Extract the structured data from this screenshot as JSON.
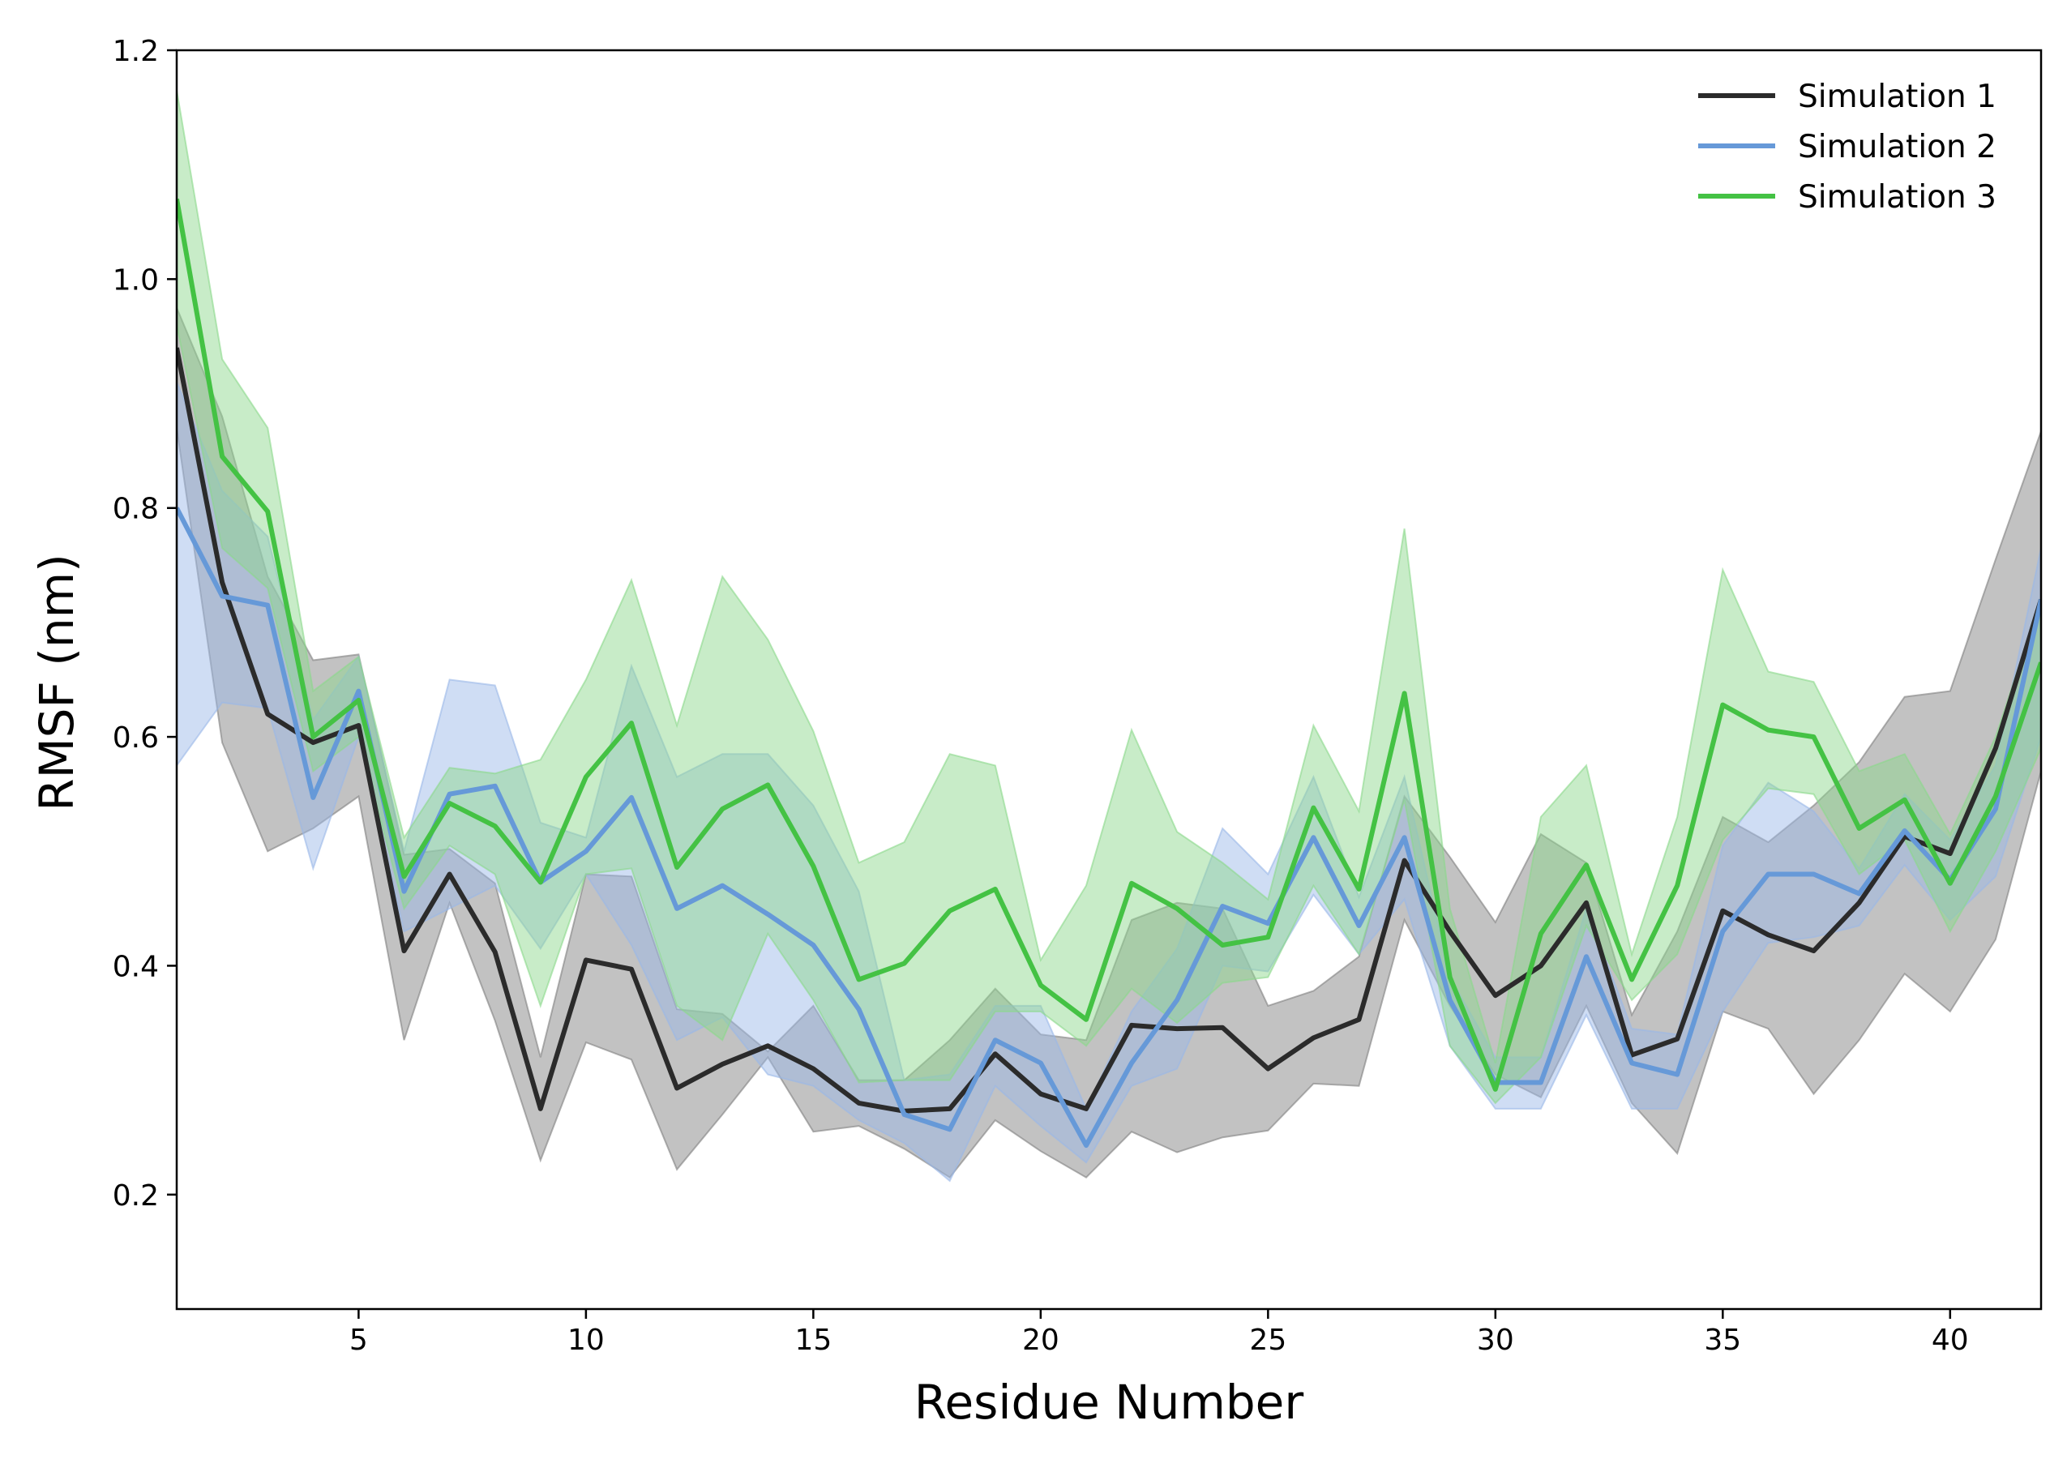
{
  "chart_data": {
    "type": "line",
    "title": "",
    "xlabel": "Residue Number",
    "ylabel": "RMSF (nm)",
    "xlim": [
      1,
      42
    ],
    "ylim": [
      0.1,
      1.2
    ],
    "xticks": [
      5,
      10,
      15,
      20,
      25,
      30,
      35,
      40
    ],
    "yticks": [
      0.2,
      0.4,
      0.6,
      0.8,
      1.0,
      1.2
    ],
    "ytick_labels": [
      "0.2",
      "0.4",
      "0.6",
      "0.8",
      "1.0",
      "1.2"
    ],
    "grid": false,
    "legend_position": "top-right",
    "x": [
      1,
      2,
      3,
      4,
      5,
      6,
      7,
      8,
      9,
      10,
      11,
      12,
      13,
      14,
      15,
      16,
      17,
      18,
      19,
      20,
      21,
      22,
      23,
      24,
      25,
      26,
      27,
      28,
      29,
      30,
      31,
      32,
      33,
      34,
      35,
      36,
      37,
      38,
      39,
      40,
      41,
      42
    ],
    "series": [
      {
        "name": "Simulation 1",
        "color": "#2b2b2b",
        "band_color": "#7f7f7f",
        "values": [
          0.94,
          0.735,
          0.62,
          0.595,
          0.61,
          0.413,
          0.48,
          0.412,
          0.275,
          0.405,
          0.397,
          0.293,
          0.314,
          0.33,
          0.31,
          0.28,
          0.273,
          0.275,
          0.323,
          0.288,
          0.275,
          0.348,
          0.345,
          0.346,
          0.31,
          0.337,
          0.353,
          0.492,
          0.43,
          0.374,
          0.4,
          0.455,
          0.322,
          0.336,
          0.448,
          0.427,
          0.413,
          0.455,
          0.513,
          0.498,
          0.59,
          0.72
        ],
        "lower": [
          0.87,
          0.595,
          0.5,
          0.52,
          0.548,
          0.335,
          0.455,
          0.352,
          0.23,
          0.333,
          0.318,
          0.222,
          0.27,
          0.32,
          0.255,
          0.26,
          0.24,
          0.215,
          0.265,
          0.238,
          0.215,
          0.255,
          0.237,
          0.25,
          0.256,
          0.297,
          0.295,
          0.44,
          0.365,
          0.305,
          0.285,
          0.365,
          0.28,
          0.236,
          0.36,
          0.345,
          0.288,
          0.335,
          0.393,
          0.36,
          0.423,
          0.57
        ],
        "upper": [
          0.975,
          0.88,
          0.74,
          0.667,
          0.672,
          0.497,
          0.502,
          0.472,
          0.32,
          0.48,
          0.478,
          0.362,
          0.358,
          0.325,
          0.365,
          0.3,
          0.3,
          0.335,
          0.38,
          0.34,
          0.335,
          0.44,
          0.455,
          0.45,
          0.365,
          0.378,
          0.408,
          0.548,
          0.495,
          0.438,
          0.515,
          0.49,
          0.357,
          0.43,
          0.53,
          0.508,
          0.54,
          0.578,
          0.635,
          0.64,
          0.755,
          0.867
        ]
      },
      {
        "name": "Simulation 2",
        "color": "#6699d8",
        "band_color": "#9ab8e8",
        "values": [
          0.8,
          0.723,
          0.715,
          0.547,
          0.64,
          0.465,
          0.55,
          0.557,
          0.473,
          0.5,
          0.547,
          0.45,
          0.47,
          0.445,
          0.418,
          0.362,
          0.27,
          0.257,
          0.335,
          0.315,
          0.243,
          0.315,
          0.37,
          0.452,
          0.437,
          0.512,
          0.435,
          0.512,
          0.37,
          0.298,
          0.298,
          0.408,
          0.315,
          0.305,
          0.43,
          0.48,
          0.48,
          0.463,
          0.518,
          0.475,
          0.537,
          0.72
        ],
        "lower": [
          0.575,
          0.63,
          0.625,
          0.485,
          0.6,
          0.43,
          0.45,
          0.47,
          0.415,
          0.48,
          0.418,
          0.335,
          0.355,
          0.305,
          0.295,
          0.265,
          0.245,
          0.212,
          0.295,
          0.26,
          0.228,
          0.295,
          0.31,
          0.4,
          0.395,
          0.462,
          0.41,
          0.458,
          0.33,
          0.275,
          0.275,
          0.357,
          0.275,
          0.275,
          0.36,
          0.42,
          0.425,
          0.435,
          0.488,
          0.44,
          0.478,
          0.6
        ],
        "upper": [
          0.91,
          0.815,
          0.775,
          0.615,
          0.67,
          0.5,
          0.65,
          0.645,
          0.525,
          0.512,
          0.662,
          0.565,
          0.585,
          0.585,
          0.54,
          0.465,
          0.3,
          0.305,
          0.365,
          0.365,
          0.275,
          0.36,
          0.415,
          0.52,
          0.48,
          0.565,
          0.46,
          0.565,
          0.39,
          0.32,
          0.32,
          0.45,
          0.345,
          0.34,
          0.505,
          0.56,
          0.535,
          0.485,
          0.55,
          0.51,
          0.575,
          0.765
        ]
      },
      {
        "name": "Simulation 3",
        "color": "#44c244",
        "band_color": "#8bd88b",
        "values": [
          1.07,
          0.845,
          0.797,
          0.6,
          0.632,
          0.478,
          0.542,
          0.522,
          0.473,
          0.565,
          0.612,
          0.486,
          0.537,
          0.558,
          0.487,
          0.388,
          0.402,
          0.448,
          0.467,
          0.383,
          0.353,
          0.472,
          0.45,
          0.418,
          0.425,
          0.538,
          0.467,
          0.638,
          0.39,
          0.292,
          0.428,
          0.488,
          0.388,
          0.47,
          0.628,
          0.606,
          0.6,
          0.52,
          0.545,
          0.472,
          0.548,
          0.665
        ],
        "lower": [
          0.96,
          0.765,
          0.73,
          0.57,
          0.6,
          0.45,
          0.505,
          0.48,
          0.365,
          0.48,
          0.485,
          0.365,
          0.335,
          0.428,
          0.37,
          0.298,
          0.3,
          0.3,
          0.36,
          0.36,
          0.33,
          0.38,
          0.35,
          0.385,
          0.39,
          0.47,
          0.41,
          0.545,
          0.33,
          0.28,
          0.32,
          0.435,
          0.37,
          0.41,
          0.51,
          0.555,
          0.55,
          0.48,
          0.51,
          0.43,
          0.5,
          0.59
        ],
        "upper": [
          1.165,
          0.93,
          0.87,
          0.64,
          0.67,
          0.512,
          0.573,
          0.568,
          0.58,
          0.65,
          0.737,
          0.61,
          0.74,
          0.685,
          0.605,
          0.49,
          0.508,
          0.585,
          0.575,
          0.405,
          0.47,
          0.606,
          0.517,
          0.49,
          0.458,
          0.61,
          0.535,
          0.782,
          0.45,
          0.315,
          0.53,
          0.575,
          0.41,
          0.53,
          0.746,
          0.657,
          0.648,
          0.57,
          0.585,
          0.515,
          0.6,
          0.72
        ]
      }
    ]
  }
}
